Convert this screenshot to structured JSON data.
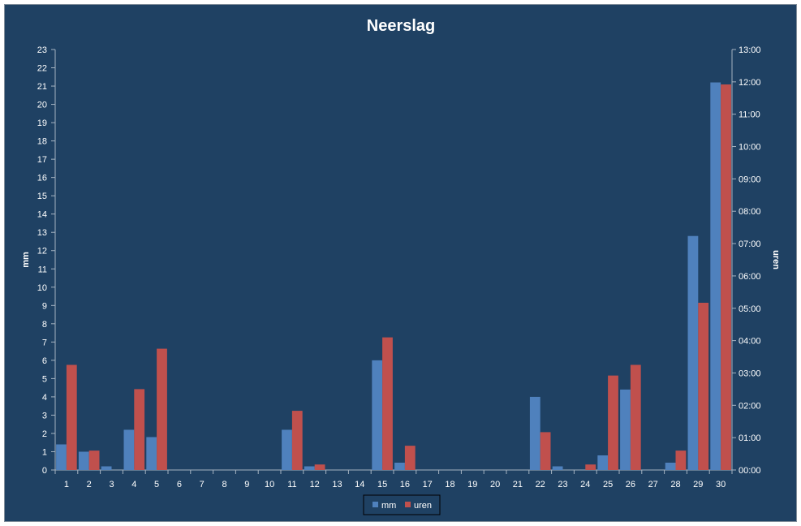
{
  "chart_data": {
    "type": "bar",
    "title": "Neerslag",
    "ylabel": "mm",
    "y2label": "uren",
    "ylim": [
      0,
      23
    ],
    "y2lim": [
      0,
      13
    ],
    "y2_unit": "hours",
    "categories": [
      "1",
      "2",
      "3",
      "4",
      "5",
      "6",
      "7",
      "8",
      "9",
      "10",
      "11",
      "12",
      "13",
      "14",
      "15",
      "16",
      "17",
      "18",
      "19",
      "20",
      "21",
      "22",
      "23",
      "24",
      "25",
      "26",
      "27",
      "28",
      "29",
      "30"
    ],
    "y_ticks": [
      "0",
      "1",
      "2",
      "3",
      "4",
      "5",
      "6",
      "7",
      "8",
      "9",
      "10",
      "11",
      "12",
      "13",
      "14",
      "15",
      "16",
      "17",
      "18",
      "19",
      "20",
      "21",
      "22",
      "23"
    ],
    "y2_ticks": [
      "00:00",
      "01:00",
      "02:00",
      "03:00",
      "04:00",
      "05:00",
      "06:00",
      "07:00",
      "08:00",
      "09:00",
      "10:00",
      "11:00",
      "12:00",
      "13:00"
    ],
    "series": [
      {
        "name": "mm",
        "axis": "left",
        "color": "#4f81bd",
        "values": [
          1.4,
          1.0,
          0.2,
          2.2,
          1.8,
          0,
          0,
          0,
          0,
          0,
          2.2,
          0.2,
          0,
          0,
          6.0,
          0.4,
          0,
          0,
          0,
          0,
          0,
          4.0,
          0.2,
          0,
          0.8,
          4.4,
          0,
          0.4,
          12.8,
          21.2
        ]
      },
      {
        "name": "uren",
        "axis": "right",
        "color": "#c0504d",
        "values": [
          3.25,
          0.6,
          0,
          2.5,
          3.75,
          0,
          0,
          0,
          0,
          0,
          1.83,
          0.17,
          0,
          0,
          4.1,
          0.75,
          0,
          0,
          0,
          0,
          0,
          1.17,
          0,
          0.17,
          2.92,
          3.25,
          0,
          0.6,
          5.17,
          11.92
        ]
      }
    ],
    "legend": {
      "position": "bottom",
      "entries": [
        "mm",
        "uren"
      ]
    },
    "grid": false
  }
}
